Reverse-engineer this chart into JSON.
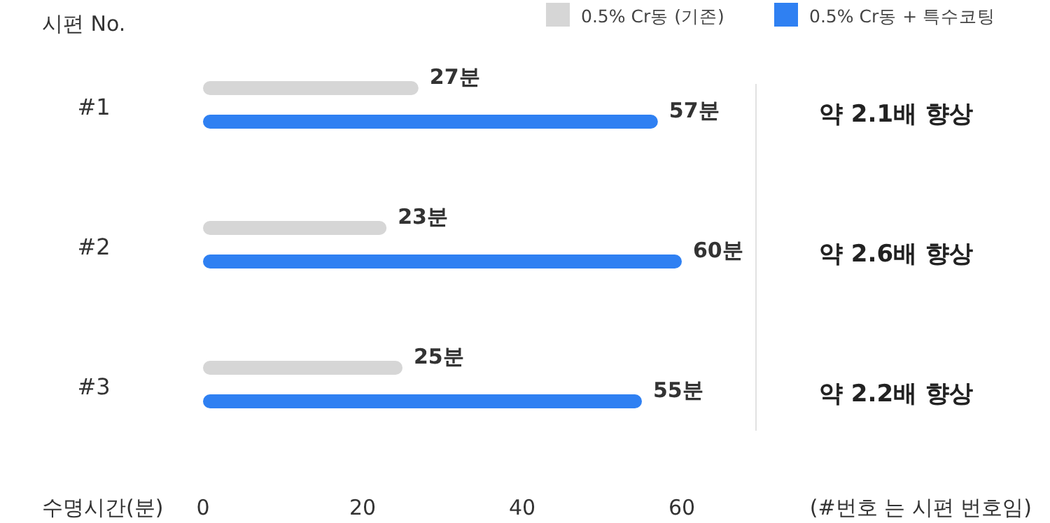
{
  "chart_data": {
    "type": "bar",
    "orientation": "horizontal",
    "ylabel": "시편 No.",
    "xlabel": "수명시간(분)",
    "categories": [
      "#1",
      "#2",
      "#3"
    ],
    "series": [
      {
        "name": "0.5% Cr동 (기존)",
        "color": "#d6d6d6",
        "values": [
          27,
          23,
          25
        ],
        "value_labels": [
          "27분",
          "23분",
          "25분"
        ]
      },
      {
        "name": "0.5% Cr동 + 특수코팅",
        "color": "#2f80f2",
        "values": [
          57,
          60,
          55
        ],
        "value_labels": [
          "57분",
          "60분",
          "55분"
        ]
      }
    ],
    "xlim": [
      0,
      60
    ],
    "xticks": [
      0,
      20,
      40,
      60
    ],
    "legend": "top right",
    "grid": false,
    "annotations": [
      "약 2.1배 향상",
      "약 2.6배 향상",
      "약 2.2배 향상",
      "(#번호 는 시편 번호임)"
    ]
  }
}
